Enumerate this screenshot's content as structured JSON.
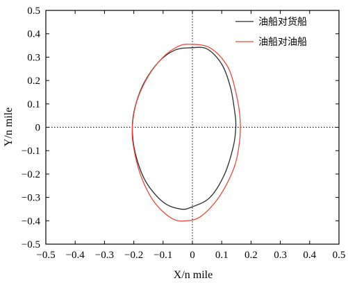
{
  "chart_data": {
    "type": "line",
    "xlabel": "X/n mile",
    "ylabel": "Y/n mile",
    "xlim": [
      -0.5,
      0.5
    ],
    "ylim": [
      -0.5,
      0.5
    ],
    "xticks": [
      "−0.5",
      "−0.4",
      "−0.3",
      "−0.2",
      "−0.1",
      "0",
      "0.1",
      "0.2",
      "0.3",
      "0.4",
      "0.5"
    ],
    "yticks": [
      "0.5",
      "0.4",
      "0.3",
      "0.2",
      "0.1",
      "0",
      "−0.1",
      "−0.2",
      "−0.3",
      "−0.4",
      "−0.5"
    ],
    "reference_lines": {
      "x": 0,
      "y": 0,
      "style": "dotted"
    },
    "grid": false,
    "legend_position": "top-right",
    "series": [
      {
        "name": "油船对货船",
        "color": "#2b2b2b",
        "x": [
          -0.005,
          0.05,
          0.1,
          0.13,
          0.145,
          0.148,
          0.14,
          0.11,
          0.06,
          0.0,
          -0.04,
          -0.1,
          -0.16,
          -0.195,
          -0.205,
          -0.195,
          -0.165,
          -0.115,
          -0.06,
          -0.005
        ],
        "y": [
          0.34,
          0.335,
          0.27,
          0.17,
          0.06,
          0.0,
          -0.08,
          -0.2,
          -0.3,
          -0.34,
          -0.35,
          -0.32,
          -0.23,
          -0.11,
          0.0,
          0.09,
          0.19,
          0.28,
          0.33,
          0.34
        ]
      },
      {
        "name": "油船对油船",
        "color": "#e8493a",
        "x": [
          -0.01,
          0.06,
          0.12,
          0.15,
          0.163,
          0.16,
          0.14,
          0.09,
          0.03,
          -0.02,
          -0.07,
          -0.13,
          -0.175,
          -0.2,
          -0.205,
          -0.19,
          -0.15,
          -0.1,
          -0.05,
          -0.01
        ],
        "y": [
          0.355,
          0.34,
          0.26,
          0.14,
          0.03,
          -0.07,
          -0.18,
          -0.3,
          -0.38,
          -0.4,
          -0.39,
          -0.32,
          -0.21,
          -0.09,
          0.0,
          0.11,
          0.22,
          0.3,
          0.345,
          0.355
        ]
      }
    ]
  }
}
